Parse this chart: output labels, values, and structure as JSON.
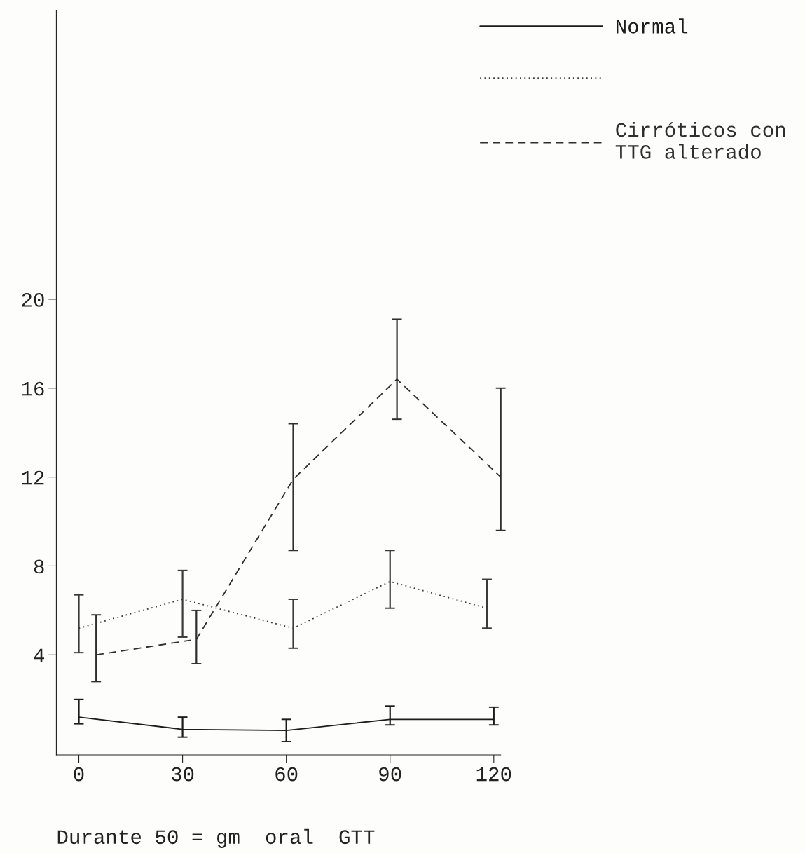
{
  "chart_data": {
    "type": "line",
    "xlabel": "Durante 50 = gm  oral  GTT",
    "xlim": [
      -6.5,
      122
    ],
    "xticks": [
      0,
      30,
      60,
      90,
      120
    ],
    "ylim": [
      -0.5,
      33
    ],
    "yticks": [
      4,
      8,
      12,
      16,
      20
    ],
    "grid": false,
    "legend": "top right",
    "marker": "none",
    "series": [
      {
        "name": "Normal",
        "color": "#1c1c1c",
        "line_style": "solid",
        "x": [
          0,
          30,
          60,
          90,
          120
        ],
        "values": [
          1.2,
          0.65,
          0.6,
          1.1,
          1.1
        ],
        "errors": [
          [
            0.9,
            2.0
          ],
          [
            0.3,
            1.2
          ],
          [
            0.1,
            1.1
          ],
          [
            0.85,
            1.7
          ],
          [
            0.85,
            1.65
          ]
        ]
      },
      {
        "color": "#3a3a3a",
        "line_style": "dotted",
        "x": [
          0,
          30,
          62,
          90,
          118
        ],
        "values": [
          5.2,
          6.5,
          5.2,
          7.3,
          6.1
        ],
        "errors": [
          [
            4.1,
            6.7
          ],
          [
            4.8,
            7.8
          ],
          [
            4.3,
            6.5
          ],
          [
            6.1,
            8.7
          ],
          [
            5.2,
            7.4
          ]
        ]
      },
      {
        "name": "Cirróticos con\nTTG alterado",
        "color": "#2e2e2e",
        "line_style": "dashed",
        "x": [
          5,
          34,
          62,
          92,
          122
        ],
        "values": [
          4.0,
          4.7,
          11.9,
          16.4,
          12.0
        ],
        "errors": [
          [
            2.8,
            5.8
          ],
          [
            3.6,
            6.0
          ],
          [
            8.7,
            14.4
          ],
          [
            14.6,
            19.1
          ],
          [
            9.6,
            16.0
          ]
        ]
      }
    ]
  }
}
